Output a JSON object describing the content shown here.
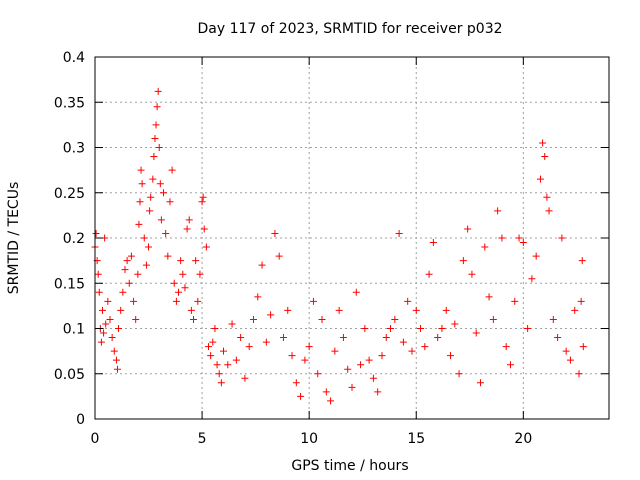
{
  "chart_data": {
    "type": "scatter",
    "title": "Day 117 of 2023, SRMTID for receiver p032",
    "xlabel": "GPS time / hours",
    "ylabel": "SRMTID / TECUs",
    "xlim": [
      0,
      24
    ],
    "ylim": [
      0,
      0.4
    ],
    "x_ticks": [
      0,
      5,
      10,
      15,
      20
    ],
    "x_tick_labels": [
      "0",
      "5",
      "10",
      "15",
      "20"
    ],
    "y_ticks": [
      0,
      0.05,
      0.1,
      0.15,
      0.2,
      0.25,
      0.3,
      0.35,
      0.4
    ],
    "y_tick_labels": [
      "0",
      "0.05",
      "0.1",
      "0.15",
      "0.2",
      "0.25",
      "0.3",
      "0.35",
      "0.4"
    ],
    "grid": true,
    "marker": "+",
    "marker_color": "#ff0000",
    "grid_color": "#a0a0a0",
    "series": [
      {
        "name": "SRMTID",
        "points": [
          [
            0.0,
            0.19
          ],
          [
            0.05,
            0.205
          ],
          [
            0.1,
            0.175
          ],
          [
            0.15,
            0.16
          ],
          [
            0.2,
            0.14
          ],
          [
            0.25,
            0.1
          ],
          [
            0.3,
            0.085
          ],
          [
            0.35,
            0.12
          ],
          [
            0.4,
            0.095
          ],
          [
            0.45,
            0.2
          ],
          [
            0.5,
            0.105
          ],
          [
            0.6,
            0.13
          ],
          [
            0.7,
            0.11
          ],
          [
            0.8,
            0.09
          ],
          [
            0.9,
            0.075
          ],
          [
            1.0,
            0.065
          ],
          [
            1.05,
            0.055
          ],
          [
            1.1,
            0.1
          ],
          [
            1.2,
            0.12
          ],
          [
            1.3,
            0.14
          ],
          [
            1.4,
            0.165
          ],
          [
            1.5,
            0.175
          ],
          [
            1.6,
            0.15
          ],
          [
            1.7,
            0.18
          ],
          [
            1.8,
            0.13
          ],
          [
            1.9,
            0.11
          ],
          [
            2.0,
            0.16
          ],
          [
            2.05,
            0.215
          ],
          [
            2.1,
            0.24
          ],
          [
            2.15,
            0.275
          ],
          [
            2.2,
            0.26
          ],
          [
            2.3,
            0.2
          ],
          [
            2.4,
            0.17
          ],
          [
            2.5,
            0.19
          ],
          [
            2.55,
            0.23
          ],
          [
            2.6,
            0.245
          ],
          [
            2.7,
            0.265
          ],
          [
            2.75,
            0.29
          ],
          [
            2.8,
            0.31
          ],
          [
            2.85,
            0.325
          ],
          [
            2.9,
            0.345
          ],
          [
            2.95,
            0.362
          ],
          [
            3.0,
            0.3
          ],
          [
            3.05,
            0.26
          ],
          [
            3.1,
            0.22
          ],
          [
            3.2,
            0.25
          ],
          [
            3.3,
            0.205
          ],
          [
            3.4,
            0.18
          ],
          [
            3.5,
            0.24
          ],
          [
            3.6,
            0.275
          ],
          [
            3.7,
            0.15
          ],
          [
            3.8,
            0.13
          ],
          [
            3.9,
            0.14
          ],
          [
            4.0,
            0.175
          ],
          [
            4.1,
            0.16
          ],
          [
            4.2,
            0.145
          ],
          [
            4.3,
            0.21
          ],
          [
            4.4,
            0.22
          ],
          [
            4.5,
            0.12
          ],
          [
            4.6,
            0.11
          ],
          [
            4.7,
            0.175
          ],
          [
            4.8,
            0.13
          ],
          [
            4.9,
            0.16
          ],
          [
            5.0,
            0.24
          ],
          [
            5.05,
            0.245
          ],
          [
            5.1,
            0.21
          ],
          [
            5.2,
            0.19
          ],
          [
            5.3,
            0.08
          ],
          [
            5.4,
            0.07
          ],
          [
            5.5,
            0.085
          ],
          [
            5.6,
            0.1
          ],
          [
            5.7,
            0.06
          ],
          [
            5.8,
            0.05
          ],
          [
            5.9,
            0.04
          ],
          [
            6.0,
            0.075
          ],
          [
            6.2,
            0.06
          ],
          [
            6.4,
            0.105
          ],
          [
            6.6,
            0.065
          ],
          [
            6.8,
            0.09
          ],
          [
            7.0,
            0.045
          ],
          [
            7.2,
            0.08
          ],
          [
            7.4,
            0.11
          ],
          [
            7.6,
            0.135
          ],
          [
            7.8,
            0.17
          ],
          [
            8.0,
            0.085
          ],
          [
            8.2,
            0.115
          ],
          [
            8.4,
            0.205
          ],
          [
            8.6,
            0.18
          ],
          [
            8.8,
            0.09
          ],
          [
            9.0,
            0.12
          ],
          [
            9.2,
            0.07
          ],
          [
            9.4,
            0.04
          ],
          [
            9.6,
            0.025
          ],
          [
            9.8,
            0.065
          ],
          [
            10.0,
            0.08
          ],
          [
            10.2,
            0.13
          ],
          [
            10.4,
            0.05
          ],
          [
            10.6,
            0.11
          ],
          [
            10.8,
            0.03
          ],
          [
            11.0,
            0.02
          ],
          [
            11.2,
            0.075
          ],
          [
            11.4,
            0.12
          ],
          [
            11.6,
            0.09
          ],
          [
            11.8,
            0.055
          ],
          [
            12.0,
            0.035
          ],
          [
            12.2,
            0.14
          ],
          [
            12.4,
            0.06
          ],
          [
            12.6,
            0.1
          ],
          [
            12.8,
            0.065
          ],
          [
            13.0,
            0.045
          ],
          [
            13.2,
            0.03
          ],
          [
            13.4,
            0.07
          ],
          [
            13.6,
            0.09
          ],
          [
            13.8,
            0.1
          ],
          [
            14.0,
            0.11
          ],
          [
            14.2,
            0.205
          ],
          [
            14.4,
            0.085
          ],
          [
            14.6,
            0.13
          ],
          [
            14.8,
            0.075
          ],
          [
            15.0,
            0.12
          ],
          [
            15.2,
            0.1
          ],
          [
            15.4,
            0.08
          ],
          [
            15.6,
            0.16
          ],
          [
            15.8,
            0.195
          ],
          [
            16.0,
            0.09
          ],
          [
            16.2,
            0.1
          ],
          [
            16.4,
            0.12
          ],
          [
            16.6,
            0.07
          ],
          [
            16.8,
            0.105
          ],
          [
            17.0,
            0.05
          ],
          [
            17.2,
            0.175
          ],
          [
            17.4,
            0.21
          ],
          [
            17.6,
            0.16
          ],
          [
            17.8,
            0.095
          ],
          [
            18.0,
            0.04
          ],
          [
            18.2,
            0.19
          ],
          [
            18.4,
            0.135
          ],
          [
            18.6,
            0.11
          ],
          [
            18.8,
            0.23
          ],
          [
            19.0,
            0.2
          ],
          [
            19.2,
            0.08
          ],
          [
            19.4,
            0.06
          ],
          [
            19.6,
            0.13
          ],
          [
            19.8,
            0.2
          ],
          [
            20.0,
            0.195
          ],
          [
            20.2,
            0.1
          ],
          [
            20.4,
            0.155
          ],
          [
            20.6,
            0.18
          ],
          [
            20.8,
            0.265
          ],
          [
            20.9,
            0.305
          ],
          [
            21.0,
            0.29
          ],
          [
            21.1,
            0.245
          ],
          [
            21.2,
            0.23
          ],
          [
            21.4,
            0.11
          ],
          [
            21.6,
            0.09
          ],
          [
            21.8,
            0.2
          ],
          [
            22.0,
            0.075
          ],
          [
            22.2,
            0.065
          ],
          [
            22.4,
            0.12
          ],
          [
            22.6,
            0.05
          ],
          [
            22.7,
            0.13
          ],
          [
            22.75,
            0.175
          ],
          [
            22.8,
            0.08
          ]
        ]
      }
    ]
  }
}
